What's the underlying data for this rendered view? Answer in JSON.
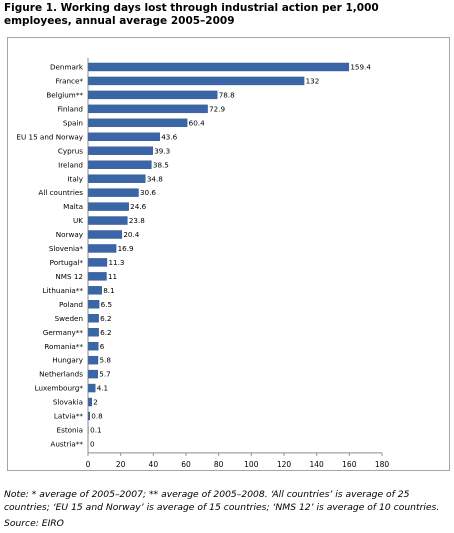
{
  "figure": {
    "title": "Figure 1. Working days lost through industrial action per 1,000 employees, annual average 2005–2009",
    "note": "Note: * average of 2005–2007; ** average of 2005–2008. ‘All countries’ is average of 25 countries; ‘EU 15 and Norway’ is average of 15 countries; ‘NMS 12’ is average of 10 countries.",
    "source": "Source: EIRO"
  },
  "colors": {
    "bar": "#3a66a8",
    "bar_edge": "#2c4f86",
    "axis": "#8c8c8c",
    "gridline": "#d9d9d9"
  },
  "chart_data": {
    "type": "bar",
    "orientation": "horizontal",
    "title": "Figure 1. Working days lost through industrial action per 1,000 employees, annual average 2005–2009",
    "xlabel": "",
    "ylabel": "",
    "xlim": [
      0,
      180
    ],
    "xticks": [
      0,
      20,
      40,
      60,
      80,
      100,
      120,
      140,
      160,
      180
    ],
    "grid": false,
    "legend": "none",
    "categories": [
      "Denmark",
      "France*",
      "Belgium**",
      "Finland",
      "Spain",
      "EU 15 and Norway",
      "Cyprus",
      "Ireland",
      "Italy",
      "All countries",
      "Malta",
      "UK",
      "Norway",
      "Slovenia*",
      "Portugal*",
      "NMS 12",
      "Lithuania**",
      "Poland",
      "Sweden",
      "Germany**",
      "Romania**",
      "Hungary",
      "Netherlands",
      "Luxembourg*",
      "Slovakia",
      "Latvia**",
      "Estonia",
      "Austria**"
    ],
    "values": [
      159.4,
      132,
      78.8,
      72.9,
      60.4,
      43.6,
      39.3,
      38.5,
      34.8,
      30.6,
      24.6,
      23.8,
      20.4,
      16.9,
      11.3,
      11,
      8.1,
      6.5,
      6.2,
      6.2,
      6,
      5.8,
      5.7,
      4.1,
      2,
      0.8,
      0.1,
      0
    ],
    "data_labels": [
      "159.4",
      "132",
      "78.8",
      "72.9",
      "60.4",
      "43.6",
      "39.3",
      "38.5",
      "34.8",
      "30.6",
      "24.6",
      "23.8",
      "20.4",
      "16.9",
      "11.3",
      "11",
      "8.1",
      "6.5",
      "6.2",
      "6.2",
      "6",
      "5.8",
      "5.7",
      "4.1",
      "2",
      "0.8",
      "0.1",
      "0"
    ]
  }
}
